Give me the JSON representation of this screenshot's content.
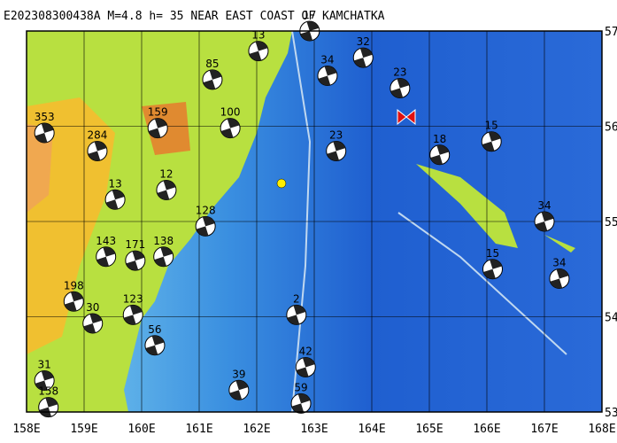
{
  "header": {
    "title": "E202308300438A M=4.8 h= 35 NEAR EAST COAST OF KAMCHATKA"
  },
  "map": {
    "lon_range": [
      158,
      168
    ],
    "lat_range": [
      53,
      57
    ],
    "lon_ticks": [
      {
        "value": 158,
        "label": "158E"
      },
      {
        "value": 159,
        "label": "159E"
      },
      {
        "value": 160,
        "label": "160E"
      },
      {
        "value": 161,
        "label": "161E"
      },
      {
        "value": 162,
        "label": "162E"
      },
      {
        "value": 163,
        "label": "163E"
      },
      {
        "value": 164,
        "label": "164E"
      },
      {
        "value": 165,
        "label": "165E"
      },
      {
        "value": 166,
        "label": "166E"
      },
      {
        "value": 167,
        "label": "167E"
      },
      {
        "value": 168,
        "label": "168E"
      }
    ],
    "lat_ticks": [
      {
        "value": 53,
        "label": "53N"
      },
      {
        "value": 54,
        "label": "54N"
      },
      {
        "value": 55,
        "label": "55N"
      },
      {
        "value": 56,
        "label": "56N"
      },
      {
        "value": 57,
        "label": "57N"
      }
    ],
    "epicenter": {
      "lon": 162.43,
      "lat": 55.4
    },
    "events": [
      {
        "label": "353",
        "lon": 158.31,
        "lat": 55.93
      },
      {
        "label": "284",
        "lon": 159.23,
        "lat": 55.74
      },
      {
        "label": "13",
        "lon": 159.54,
        "lat": 55.23
      },
      {
        "label": "143",
        "lon": 159.38,
        "lat": 54.63
      },
      {
        "label": "171",
        "lon": 159.89,
        "lat": 54.59
      },
      {
        "label": "138",
        "lon": 160.38,
        "lat": 54.63
      },
      {
        "label": "198",
        "lon": 158.82,
        "lat": 54.16
      },
      {
        "label": "30",
        "lon": 159.15,
        "lat": 53.93
      },
      {
        "label": "123",
        "lon": 159.85,
        "lat": 54.02
      },
      {
        "label": "31",
        "lon": 158.31,
        "lat": 53.33
      },
      {
        "label": "158",
        "lon": 158.38,
        "lat": 53.05
      },
      {
        "label": "159",
        "lon": 160.28,
        "lat": 55.98
      },
      {
        "label": "85",
        "lon": 161.23,
        "lat": 56.49
      },
      {
        "label": "13",
        "lon": 162.03,
        "lat": 56.79
      },
      {
        "label": "100",
        "lon": 161.54,
        "lat": 55.98
      },
      {
        "label": "128",
        "lon": 161.11,
        "lat": 54.95
      },
      {
        "label": "17",
        "lon": 162.92,
        "lat": 57.0
      },
      {
        "label": "32",
        "lon": 163.85,
        "lat": 56.72
      },
      {
        "label": "34",
        "lon": 163.23,
        "lat": 56.53
      },
      {
        "label": "23",
        "lon": 164.49,
        "lat": 56.4
      },
      {
        "label": "23",
        "lon": 163.38,
        "lat": 55.74
      },
      {
        "label": "18",
        "lon": 165.18,
        "lat": 55.7
      },
      {
        "label": "15",
        "lon": 166.08,
        "lat": 55.84
      },
      {
        "label": "34",
        "lon": 167.0,
        "lat": 55.0
      },
      {
        "label": "34",
        "lon": 167.26,
        "lat": 54.4
      },
      {
        "label": "15",
        "lon": 166.1,
        "lat": 54.5
      },
      {
        "label": "42",
        "lon": 162.85,
        "lat": 53.47
      },
      {
        "label": "59",
        "lon": 162.77,
        "lat": 53.09
      },
      {
        "label": "39",
        "lon": 161.69,
        "lat": 53.23
      },
      {
        "label": "56",
        "lon": 160.23,
        "lat": 53.7
      },
      {
        "label": "12",
        "lon": 160.43,
        "lat": 55.33
      },
      {
        "label": "2",
        "lon": 162.69,
        "lat": 54.02
      }
    ]
  }
}
